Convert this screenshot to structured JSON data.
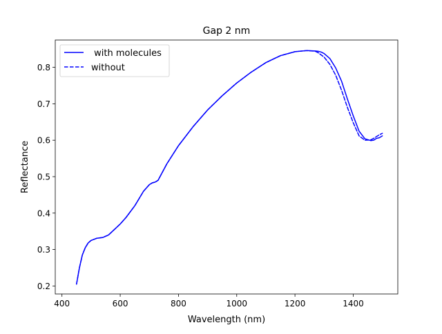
{
  "chart_data": {
    "type": "line",
    "title": "Gap 2 nm",
    "xlabel": "Wavelength (nm)",
    "ylabel": "Reflectance",
    "xlim": [
      377,
      1553
    ],
    "ylim": [
      0.178,
      0.875
    ],
    "xticks": [
      400,
      600,
      800,
      1000,
      1200,
      1400
    ],
    "yticks": [
      0.2,
      0.3,
      0.4,
      0.5,
      0.6,
      0.7,
      0.8
    ],
    "grid": false,
    "legend": "top-left",
    "series": [
      {
        "name": " with molecules",
        "color": "#0000ff",
        "style": "solid",
        "x": [
          450,
          460,
          470,
          480,
          490,
          500,
          520,
          540,
          560,
          580,
          600,
          620,
          650,
          680,
          700,
          710,
          720,
          730,
          740,
          760,
          800,
          850,
          900,
          950,
          1000,
          1050,
          1100,
          1150,
          1200,
          1240,
          1270,
          1280,
          1290,
          1300,
          1320,
          1340,
          1360,
          1380,
          1400,
          1420,
          1440,
          1460,
          1470,
          1480,
          1490,
          1500
        ],
        "y": [
          0.205,
          0.25,
          0.285,
          0.305,
          0.318,
          0.325,
          0.331,
          0.333,
          0.34,
          0.355,
          0.37,
          0.388,
          0.42,
          0.46,
          0.478,
          0.483,
          0.485,
          0.49,
          0.505,
          0.535,
          0.585,
          0.637,
          0.683,
          0.722,
          0.757,
          0.787,
          0.813,
          0.832,
          0.843,
          0.846,
          0.845,
          0.844,
          0.842,
          0.838,
          0.824,
          0.798,
          0.762,
          0.713,
          0.667,
          0.625,
          0.604,
          0.599,
          0.6,
          0.605,
          0.607,
          0.612
        ]
      },
      {
        "name": "without",
        "color": "#0000ff",
        "style": "dashed",
        "x": [
          450,
          460,
          470,
          480,
          490,
          500,
          520,
          540,
          560,
          580,
          600,
          620,
          650,
          680,
          700,
          710,
          720,
          730,
          740,
          760,
          800,
          850,
          900,
          950,
          1000,
          1050,
          1100,
          1150,
          1200,
          1240,
          1260,
          1270,
          1280,
          1300,
          1320,
          1340,
          1360,
          1380,
          1400,
          1420,
          1440,
          1460,
          1470,
          1480,
          1490,
          1500
        ],
        "y": [
          0.205,
          0.25,
          0.285,
          0.305,
          0.318,
          0.325,
          0.331,
          0.333,
          0.34,
          0.355,
          0.37,
          0.388,
          0.42,
          0.46,
          0.478,
          0.483,
          0.485,
          0.49,
          0.505,
          0.535,
          0.585,
          0.637,
          0.683,
          0.722,
          0.757,
          0.787,
          0.813,
          0.832,
          0.843,
          0.846,
          0.845,
          0.844,
          0.84,
          0.828,
          0.808,
          0.778,
          0.737,
          0.69,
          0.648,
          0.612,
          0.6,
          0.601,
          0.605,
          0.61,
          0.615,
          0.619
        ]
      }
    ]
  }
}
